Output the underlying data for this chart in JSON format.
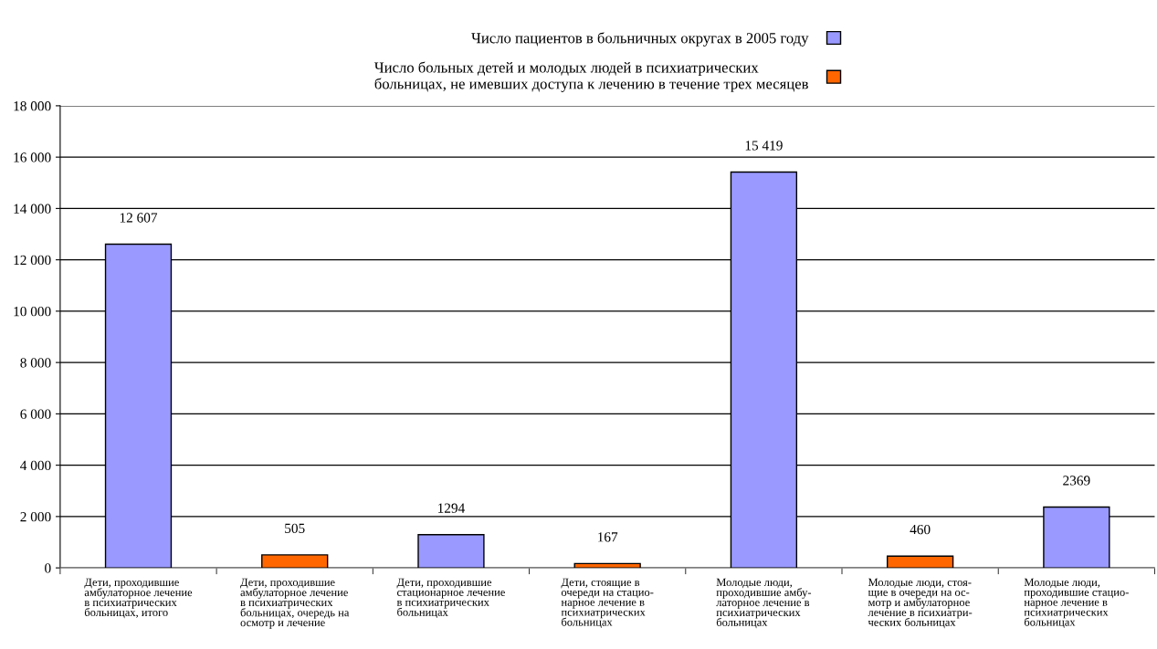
{
  "chart_data": {
    "type": "bar",
    "categories": [
      "Дети, проходившие\nамбулаторное лечение\nв психиатрических\nбольницах, итого",
      "Дети, проходившие\nамбулаторное лечение\nв психиатрических\nбольницах, очередь на\nосмотр и лечение",
      "Дети, проходившие\nстационарное лечение\nв психиатрических\nбольницах",
      "Дети, стоящие в\nочереди на стацио-\nнарное лечение в\nпсихиатрических\nбольницах",
      "Молодые люди,\nпроходившие амбу-\nлаторное лечение в\nпсихиатрических\nбольницах",
      "Молодые люди, стоя-\nщие в очереди на ос-\nмотр и амбулаторное\nлечение в психиатри-\nческих больницах",
      "Молодые люди,\nпроходившие стацио-\nнарное лечение в\nпсихиатрических\nбольницах"
    ],
    "series": [
      {
        "name": "Число пациентов в больничных округах в 2005 году",
        "color": "#9999ff",
        "values": [
          12607,
          null,
          1294,
          null,
          15419,
          null,
          2369
        ],
        "value_labels": [
          "12 607",
          null,
          "1294",
          null,
          "15 419",
          null,
          "2369"
        ]
      },
      {
        "name": "Число больных детей и молодых людей в психиатрических\nбольницах, не имевших доступа к лечению в течение трех месяцев",
        "color": "#ff6600",
        "values": [
          null,
          505,
          null,
          167,
          null,
          460,
          null
        ],
        "value_labels": [
          null,
          "505",
          null,
          "167",
          null,
          "460",
          null
        ]
      }
    ],
    "ylim": [
      0,
      18000
    ],
    "yticks": [
      {
        "value": 0,
        "label": "0"
      },
      {
        "value": 2000,
        "label": "2 000"
      },
      {
        "value": 4000,
        "label": "4 000"
      },
      {
        "value": 6000,
        "label": "6 000"
      },
      {
        "value": 8000,
        "label": "8 000"
      },
      {
        "value": 10000,
        "label": "10 000"
      },
      {
        "value": 12000,
        "label": "12 000"
      },
      {
        "value": 14000,
        "label": "14 000"
      },
      {
        "value": 16000,
        "label": "16 000"
      },
      {
        "value": 18000,
        "label": "18 000"
      }
    ],
    "grid": "y",
    "legend": "top"
  }
}
